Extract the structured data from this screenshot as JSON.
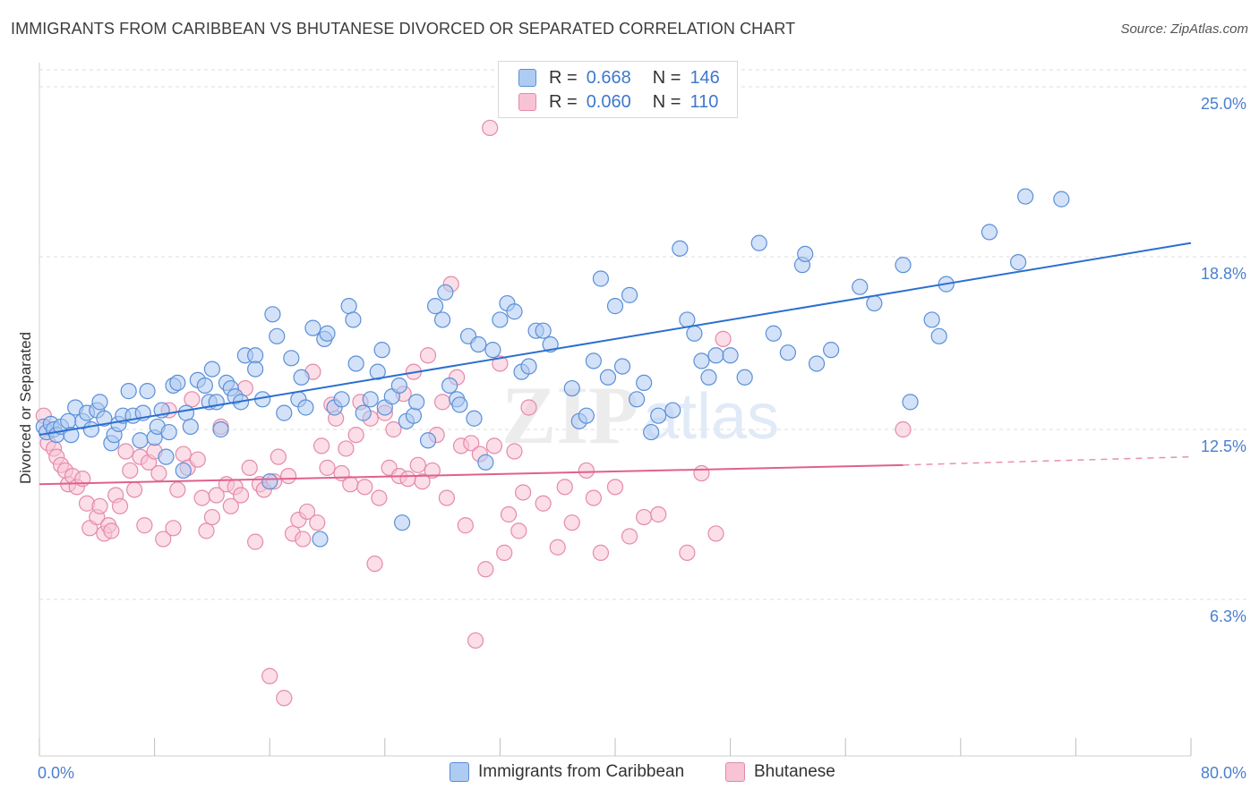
{
  "header": {
    "title": "IMMIGRANTS FROM CARIBBEAN VS BHUTANESE DIVORCED OR SEPARATED CORRELATION CHART",
    "source": "Source: ZipAtlas.com"
  },
  "legend": {
    "rows": [
      {
        "r_label": "R =",
        "r_value": "0.668",
        "n_label": "N =",
        "n_value": "146"
      },
      {
        "r_label": "R =",
        "r_value": "0.060",
        "n_label": "N =",
        "n_value": "110"
      }
    ]
  },
  "watermark": {
    "zip": "ZIP",
    "atlas": "atlas"
  },
  "colors": {
    "blue_fill": "#aecbf2",
    "blue_stroke": "#5b8fd8",
    "blue_line": "#2b6fd0",
    "pink_fill": "#f8c3d4",
    "pink_stroke": "#e58aaa",
    "pink_line": "#e0608e",
    "grid": "#dcdcdc",
    "tick_label": "#4a7fd0"
  },
  "chart_data": {
    "type": "scatter",
    "xlabel": "",
    "ylabel": "Divorced or Separated",
    "xlim": [
      0,
      80
    ],
    "ylim": [
      0,
      26
    ],
    "x_tick_labels": [
      "0.0%",
      "80.0%"
    ],
    "y_ticks": [
      6.3,
      12.5,
      18.8,
      25.0
    ],
    "y_tick_labels": [
      "6.3%",
      "12.5%",
      "18.8%",
      "25.0%"
    ],
    "grid": "horizontal dashed",
    "legend_position": "top-center",
    "series": [
      {
        "name": "Immigrants from Caribbean",
        "color": "#5b8fd8",
        "trend": {
          "x0": 0,
          "y0": 12.3,
          "x1": 80,
          "y1": 19.3
        },
        "points": [
          [
            0.3,
            12.6
          ],
          [
            0.5,
            12.4
          ],
          [
            0.8,
            12.7
          ],
          [
            1.0,
            12.5
          ],
          [
            1.2,
            12.3
          ],
          [
            1.5,
            12.6
          ],
          [
            2.0,
            12.8
          ],
          [
            2.2,
            12.3
          ],
          [
            2.5,
            13.3
          ],
          [
            3.0,
            12.8
          ],
          [
            3.3,
            13.1
          ],
          [
            3.6,
            12.5
          ],
          [
            4.0,
            13.2
          ],
          [
            4.2,
            13.5
          ],
          [
            4.5,
            12.9
          ],
          [
            5.0,
            12.0
          ],
          [
            5.2,
            12.3
          ],
          [
            5.5,
            12.7
          ],
          [
            5.8,
            13.0
          ],
          [
            6.2,
            13.9
          ],
          [
            6.5,
            13.0
          ],
          [
            7.0,
            12.1
          ],
          [
            7.2,
            13.1
          ],
          [
            7.5,
            13.9
          ],
          [
            8.0,
            12.2
          ],
          [
            8.2,
            12.6
          ],
          [
            8.5,
            13.2
          ],
          [
            8.8,
            11.5
          ],
          [
            9.0,
            12.4
          ],
          [
            9.3,
            14.1
          ],
          [
            9.6,
            14.2
          ],
          [
            10.0,
            11.0
          ],
          [
            10.2,
            13.1
          ],
          [
            10.5,
            12.6
          ],
          [
            11.0,
            14.3
          ],
          [
            11.5,
            14.1
          ],
          [
            11.8,
            13.5
          ],
          [
            12.0,
            14.7
          ],
          [
            12.3,
            13.5
          ],
          [
            12.6,
            12.5
          ],
          [
            13.0,
            14.2
          ],
          [
            13.3,
            14.0
          ],
          [
            13.6,
            13.7
          ],
          [
            14.0,
            13.5
          ],
          [
            14.3,
            15.2
          ],
          [
            15.0,
            15.2
          ],
          [
            15.0,
            14.7
          ],
          [
            15.5,
            13.6
          ],
          [
            16.0,
            10.6
          ],
          [
            16.2,
            16.7
          ],
          [
            16.5,
            15.9
          ],
          [
            17.0,
            13.1
          ],
          [
            17.5,
            15.1
          ],
          [
            18.0,
            13.6
          ],
          [
            18.2,
            14.4
          ],
          [
            18.5,
            13.3
          ],
          [
            19.0,
            16.2
          ],
          [
            19.5,
            8.5
          ],
          [
            19.8,
            15.8
          ],
          [
            20.0,
            16.0
          ],
          [
            20.5,
            13.3
          ],
          [
            21.0,
            13.6
          ],
          [
            21.5,
            17.0
          ],
          [
            21.8,
            16.5
          ],
          [
            22.0,
            14.9
          ],
          [
            22.5,
            13.1
          ],
          [
            23.0,
            13.6
          ],
          [
            23.5,
            14.6
          ],
          [
            23.8,
            15.4
          ],
          [
            24.0,
            13.3
          ],
          [
            24.5,
            13.7
          ],
          [
            25.0,
            14.1
          ],
          [
            25.2,
            9.1
          ],
          [
            25.5,
            12.8
          ],
          [
            26.0,
            13.0
          ],
          [
            26.2,
            13.5
          ],
          [
            27.0,
            12.1
          ],
          [
            27.5,
            17.0
          ],
          [
            28.0,
            16.5
          ],
          [
            28.2,
            17.5
          ],
          [
            28.5,
            14.1
          ],
          [
            29.0,
            13.6
          ],
          [
            29.2,
            13.4
          ],
          [
            29.8,
            15.9
          ],
          [
            30.2,
            12.9
          ],
          [
            30.5,
            15.6
          ],
          [
            31.0,
            11.3
          ],
          [
            31.5,
            15.4
          ],
          [
            32.0,
            16.5
          ],
          [
            32.5,
            17.1
          ],
          [
            33.0,
            16.8
          ],
          [
            33.5,
            14.6
          ],
          [
            34.0,
            14.8
          ],
          [
            34.5,
            16.1
          ],
          [
            35.0,
            16.1
          ],
          [
            35.5,
            15.6
          ],
          [
            37.0,
            14.0
          ],
          [
            37.5,
            12.8
          ],
          [
            38.0,
            13.0
          ],
          [
            38.5,
            15.0
          ],
          [
            39.0,
            18.0
          ],
          [
            39.5,
            14.4
          ],
          [
            40.0,
            17.0
          ],
          [
            40.5,
            14.8
          ],
          [
            41.0,
            17.4
          ],
          [
            41.5,
            13.6
          ],
          [
            42.0,
            14.2
          ],
          [
            42.5,
            12.4
          ],
          [
            43.0,
            13.0
          ],
          [
            44.0,
            13.2
          ],
          [
            44.5,
            19.1
          ],
          [
            45.0,
            16.5
          ],
          [
            45.5,
            16.0
          ],
          [
            46.0,
            15.0
          ],
          [
            46.5,
            14.4
          ],
          [
            47.0,
            15.2
          ],
          [
            48.0,
            15.2
          ],
          [
            49.0,
            14.4
          ],
          [
            50.0,
            19.3
          ],
          [
            51.0,
            16.0
          ],
          [
            52.0,
            15.3
          ],
          [
            53.0,
            18.5
          ],
          [
            53.2,
            18.9
          ],
          [
            54.0,
            14.9
          ],
          [
            55.0,
            15.4
          ],
          [
            57.0,
            17.7
          ],
          [
            58.0,
            17.1
          ],
          [
            60.0,
            18.5
          ],
          [
            60.5,
            13.5
          ],
          [
            62.0,
            16.5
          ],
          [
            62.5,
            15.9
          ],
          [
            63.0,
            17.8
          ],
          [
            66.0,
            19.7
          ],
          [
            68.0,
            18.6
          ],
          [
            68.5,
            21.0
          ],
          [
            71.0,
            20.9
          ]
        ]
      },
      {
        "name": "Bhutanese",
        "color": "#e58aaa",
        "trend": {
          "x0": 0,
          "y0": 10.5,
          "x1": 60,
          "y1": 11.2,
          "dash_to_x": 80,
          "dash_to_y": 11.5
        },
        "points": [
          [
            0.3,
            13.0
          ],
          [
            0.6,
            12.0
          ],
          [
            1.0,
            11.8
          ],
          [
            1.2,
            11.5
          ],
          [
            1.5,
            11.2
          ],
          [
            1.8,
            11.0
          ],
          [
            2.0,
            10.5
          ],
          [
            2.3,
            10.8
          ],
          [
            2.6,
            10.4
          ],
          [
            3.0,
            10.7
          ],
          [
            3.3,
            9.8
          ],
          [
            3.5,
            8.9
          ],
          [
            4.0,
            9.3
          ],
          [
            4.2,
            9.7
          ],
          [
            4.5,
            8.7
          ],
          [
            4.8,
            9.0
          ],
          [
            5.0,
            8.8
          ],
          [
            5.3,
            10.1
          ],
          [
            5.6,
            9.7
          ],
          [
            6.0,
            11.7
          ],
          [
            6.3,
            11.0
          ],
          [
            6.6,
            10.3
          ],
          [
            7.0,
            11.5
          ],
          [
            7.3,
            9.0
          ],
          [
            7.6,
            11.3
          ],
          [
            8.0,
            11.7
          ],
          [
            8.3,
            10.9
          ],
          [
            8.6,
            8.5
          ],
          [
            9.0,
            13.2
          ],
          [
            9.3,
            8.9
          ],
          [
            9.6,
            10.3
          ],
          [
            10.0,
            11.6
          ],
          [
            10.3,
            11.1
          ],
          [
            10.6,
            13.6
          ],
          [
            11.0,
            11.4
          ],
          [
            11.3,
            10.0
          ],
          [
            11.6,
            8.8
          ],
          [
            12.0,
            9.3
          ],
          [
            12.3,
            10.1
          ],
          [
            12.6,
            12.6
          ],
          [
            13.0,
            10.5
          ],
          [
            13.3,
            9.7
          ],
          [
            13.6,
            10.4
          ],
          [
            14.0,
            10.1
          ],
          [
            14.3,
            14.0
          ],
          [
            14.6,
            11.1
          ],
          [
            15.0,
            8.4
          ],
          [
            15.3,
            10.5
          ],
          [
            15.6,
            10.3
          ],
          [
            16.0,
            3.5
          ],
          [
            16.3,
            10.6
          ],
          [
            16.6,
            11.5
          ],
          [
            17.0,
            2.7
          ],
          [
            17.3,
            10.8
          ],
          [
            17.6,
            8.7
          ],
          [
            18.0,
            9.2
          ],
          [
            18.3,
            8.5
          ],
          [
            18.6,
            9.5
          ],
          [
            19.0,
            14.6
          ],
          [
            19.3,
            9.1
          ],
          [
            19.6,
            11.9
          ],
          [
            20.0,
            11.1
          ],
          [
            20.3,
            13.4
          ],
          [
            20.6,
            12.9
          ],
          [
            21.0,
            10.9
          ],
          [
            21.3,
            11.8
          ],
          [
            21.6,
            10.5
          ],
          [
            22.0,
            12.3
          ],
          [
            22.3,
            13.5
          ],
          [
            22.6,
            10.4
          ],
          [
            23.0,
            12.9
          ],
          [
            23.3,
            7.6
          ],
          [
            23.6,
            10.0
          ],
          [
            24.0,
            13.1
          ],
          [
            24.3,
            11.1
          ],
          [
            24.6,
            12.5
          ],
          [
            25.0,
            10.8
          ],
          [
            25.3,
            13.8
          ],
          [
            25.6,
            10.7
          ],
          [
            26.0,
            14.6
          ],
          [
            26.3,
            11.2
          ],
          [
            26.6,
            10.6
          ],
          [
            27.0,
            15.2
          ],
          [
            27.3,
            11.0
          ],
          [
            27.6,
            12.3
          ],
          [
            28.0,
            13.5
          ],
          [
            28.3,
            10.0
          ],
          [
            28.6,
            17.8
          ],
          [
            29.0,
            14.4
          ],
          [
            29.3,
            11.9
          ],
          [
            29.6,
            9.0
          ],
          [
            30.0,
            12.0
          ],
          [
            30.3,
            4.8
          ],
          [
            30.6,
            11.6
          ],
          [
            31.0,
            7.4
          ],
          [
            31.3,
            23.5
          ],
          [
            31.6,
            11.9
          ],
          [
            32.0,
            14.9
          ],
          [
            32.3,
            8.0
          ],
          [
            32.6,
            9.4
          ],
          [
            33.0,
            11.7
          ],
          [
            33.3,
            8.8
          ],
          [
            33.6,
            10.2
          ],
          [
            34.0,
            13.3
          ],
          [
            35.0,
            9.8
          ],
          [
            36.0,
            8.2
          ],
          [
            36.5,
            10.4
          ],
          [
            37.0,
            9.1
          ],
          [
            38.0,
            11.0
          ],
          [
            38.5,
            10.0
          ],
          [
            39.0,
            8.0
          ],
          [
            40.0,
            10.4
          ],
          [
            41.0,
            8.6
          ],
          [
            42.0,
            9.3
          ],
          [
            43.0,
            9.4
          ],
          [
            45.0,
            8.0
          ],
          [
            46.0,
            10.9
          ],
          [
            47.0,
            8.7
          ],
          [
            47.5,
            15.8
          ],
          [
            60.0,
            12.5
          ]
        ]
      }
    ]
  },
  "bottom_legend": {
    "items": [
      {
        "label": "Immigrants from Caribbean"
      },
      {
        "label": "Bhutanese"
      }
    ]
  }
}
